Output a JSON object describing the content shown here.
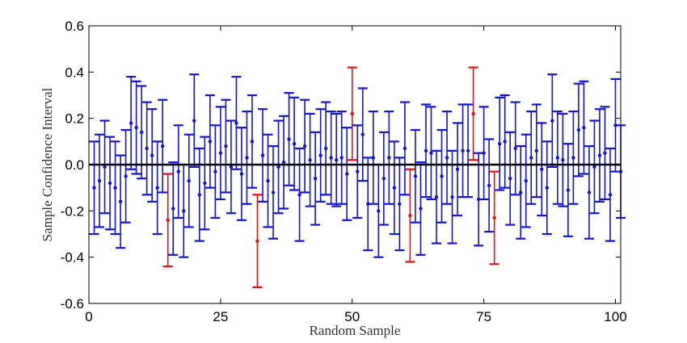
{
  "chart_data": {
    "type": "scatter",
    "subtype": "errorbar",
    "xlabel": "Random Sample",
    "ylabel": "Sample Confidence Interval",
    "xlim": [
      0,
      101
    ],
    "ylim": [
      -0.6,
      0.6
    ],
    "xticks": [
      0,
      25,
      50,
      75,
      100
    ],
    "yticks": [
      -0.6,
      -0.4,
      -0.2,
      0,
      0.2,
      0.4,
      0.6
    ],
    "reference_line": 0,
    "grid": false,
    "colors": {
      "contains_zero": "#1414d2",
      "excludes_zero": "#e01010",
      "reference": "#000000"
    },
    "half_width": 0.2,
    "samples": [
      -0.1,
      -0.07,
      -0.01,
      -0.08,
      -0.1,
      -0.16,
      -0.05,
      0.18,
      0.16,
      0.14,
      0.07,
      0.04,
      -0.1,
      0.08,
      -0.24,
      -0.19,
      -0.03,
      -0.2,
      -0.07,
      0.19,
      -0.13,
      -0.08,
      0.1,
      -0.03,
      0.05,
      0.08,
      -0.01,
      0.18,
      -0.04,
      0.03,
      0.1,
      -0.33,
      0.04,
      -0.07,
      -0.12,
      -0.01,
      0.01,
      0.11,
      0.09,
      -0.13,
      0.08,
      0.02,
      -0.06,
      0.04,
      0.07,
      0.03,
      0.02,
      0.03,
      -0.04,
      0.22,
      -0.03,
      0.13,
      -0.17,
      0.03,
      -0.2,
      -0.06,
      0.03,
      -0.1,
      -0.17,
      0.07,
      -0.22,
      -0.05,
      -0.19,
      0.06,
      0.05,
      -0.14,
      -0.05,
      0.03,
      -0.14,
      -0.02,
      0.06,
      0.06,
      0.22,
      -0.15,
      0.05,
      -0.09,
      -0.23,
      0.09,
      0.1,
      -0.06,
      0.07,
      -0.12,
      -0.07,
      0.03,
      0.06,
      -0.02,
      -0.1,
      0.19,
      0.03,
      0.02,
      -0.11,
      0.03,
      0.15,
      0.16,
      -0.12,
      -0.01,
      0.04,
      0.05,
      -0.13,
      0.17,
      -0.03
    ]
  }
}
